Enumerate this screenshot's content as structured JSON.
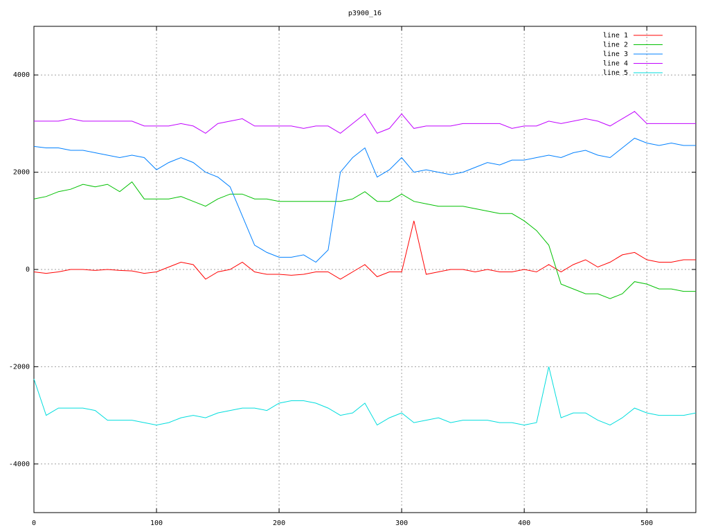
{
  "chart_data": {
    "type": "line",
    "title": "p3900_16",
    "x": [
      0,
      10,
      20,
      30,
      40,
      50,
      60,
      70,
      80,
      90,
      100,
      110,
      120,
      130,
      140,
      150,
      160,
      170,
      180,
      190,
      200,
      210,
      220,
      230,
      240,
      250,
      260,
      270,
      280,
      290,
      300,
      310,
      320,
      330,
      340,
      350,
      360,
      370,
      380,
      390,
      400,
      410,
      420,
      430,
      440,
      450,
      460,
      470,
      480,
      490,
      500,
      510,
      520,
      530,
      540
    ],
    "series": [
      {
        "name": "line 1",
        "color": "#ff0000",
        "values": [
          -50,
          -80,
          -50,
          0,
          0,
          -20,
          0,
          -20,
          -30,
          -80,
          -50,
          50,
          150,
          100,
          -200,
          -50,
          0,
          150,
          -50,
          -100,
          -100,
          -120,
          -100,
          -50,
          -50,
          -200,
          -50,
          100,
          -150,
          -50,
          -50,
          1000,
          -100,
          -50,
          0,
          0,
          -50,
          0,
          -50,
          -50,
          0,
          -50,
          100,
          -50,
          100,
          200,
          50,
          150,
          300,
          350,
          200,
          150,
          150,
          200,
          200
        ]
      },
      {
        "name": "line 2",
        "color": "#00c000",
        "values": [
          1450,
          1500,
          1600,
          1650,
          1750,
          1700,
          1750,
          1600,
          1800,
          1450,
          1450,
          1450,
          1500,
          1400,
          1300,
          1450,
          1550,
          1550,
          1450,
          1450,
          1400,
          1400,
          1400,
          1400,
          1400,
          1400,
          1450,
          1600,
          1400,
          1400,
          1550,
          1400,
          1350,
          1300,
          1300,
          1300,
          1250,
          1200,
          1150,
          1150,
          1000,
          800,
          500,
          -300,
          -400,
          -500,
          -500,
          -600,
          -500,
          -250,
          -300,
          -400,
          -400,
          -450,
          -450
        ]
      },
      {
        "name": "line 3",
        "color": "#0080ff",
        "values": [
          2530,
          2500,
          2500,
          2450,
          2450,
          2400,
          2350,
          2300,
          2350,
          2300,
          2050,
          2200,
          2300,
          2200,
          2000,
          1900,
          1700,
          1100,
          500,
          350,
          250,
          250,
          300,
          150,
          400,
          2000,
          2300,
          2500,
          1900,
          2050,
          2300,
          2000,
          2050,
          2000,
          1950,
          2000,
          2100,
          2200,
          2150,
          2250,
          2250,
          2300,
          2350,
          2300,
          2400,
          2450,
          2350,
          2300,
          2500,
          2700,
          2600,
          2550,
          2600,
          2550,
          2550
        ]
      },
      {
        "name": "line 4",
        "color": "#c000ff",
        "values": [
          3050,
          3050,
          3050,
          3100,
          3050,
          3050,
          3050,
          3050,
          3050,
          2950,
          2950,
          2950,
          3000,
          2950,
          2800,
          3000,
          3050,
          3100,
          2950,
          2950,
          2950,
          2950,
          2900,
          2950,
          2950,
          2800,
          3000,
          3200,
          2800,
          2900,
          3200,
          2900,
          2950,
          2950,
          2950,
          3000,
          3000,
          3000,
          3000,
          2900,
          2950,
          2950,
          3050,
          3000,
          3050,
          3100,
          3050,
          2950,
          3100,
          3250,
          3000,
          3000,
          3000,
          3000,
          3000
        ]
      },
      {
        "name": "line 5",
        "color": "#00dddd",
        "values": [
          -2250,
          -3000,
          -2850,
          -2850,
          -2850,
          -2900,
          -3100,
          -3100,
          -3100,
          -3150,
          -3200,
          -3150,
          -3050,
          -3000,
          -3050,
          -2950,
          -2900,
          -2850,
          -2850,
          -2900,
          -2750,
          -2700,
          -2700,
          -2750,
          -2850,
          -3000,
          -2950,
          -2750,
          -3200,
          -3050,
          -2950,
          -3150,
          -3100,
          -3050,
          -3150,
          -3100,
          -3100,
          -3100,
          -3150,
          -3150,
          -3200,
          -3150,
          -2000,
          -3050,
          -2950,
          -2950,
          -3100,
          -3200,
          -3050,
          -2850,
          -2950,
          -3000,
          -3000,
          -3000,
          -2950
        ]
      }
    ],
    "xlim": [
      0,
      540
    ],
    "ylim": [
      -5000,
      5000
    ],
    "xticks": [
      0,
      100,
      200,
      300,
      400,
      500
    ],
    "yticks": [
      -4000,
      -2000,
      0,
      2000,
      4000
    ],
    "grid": true,
    "legend": "top-right"
  }
}
